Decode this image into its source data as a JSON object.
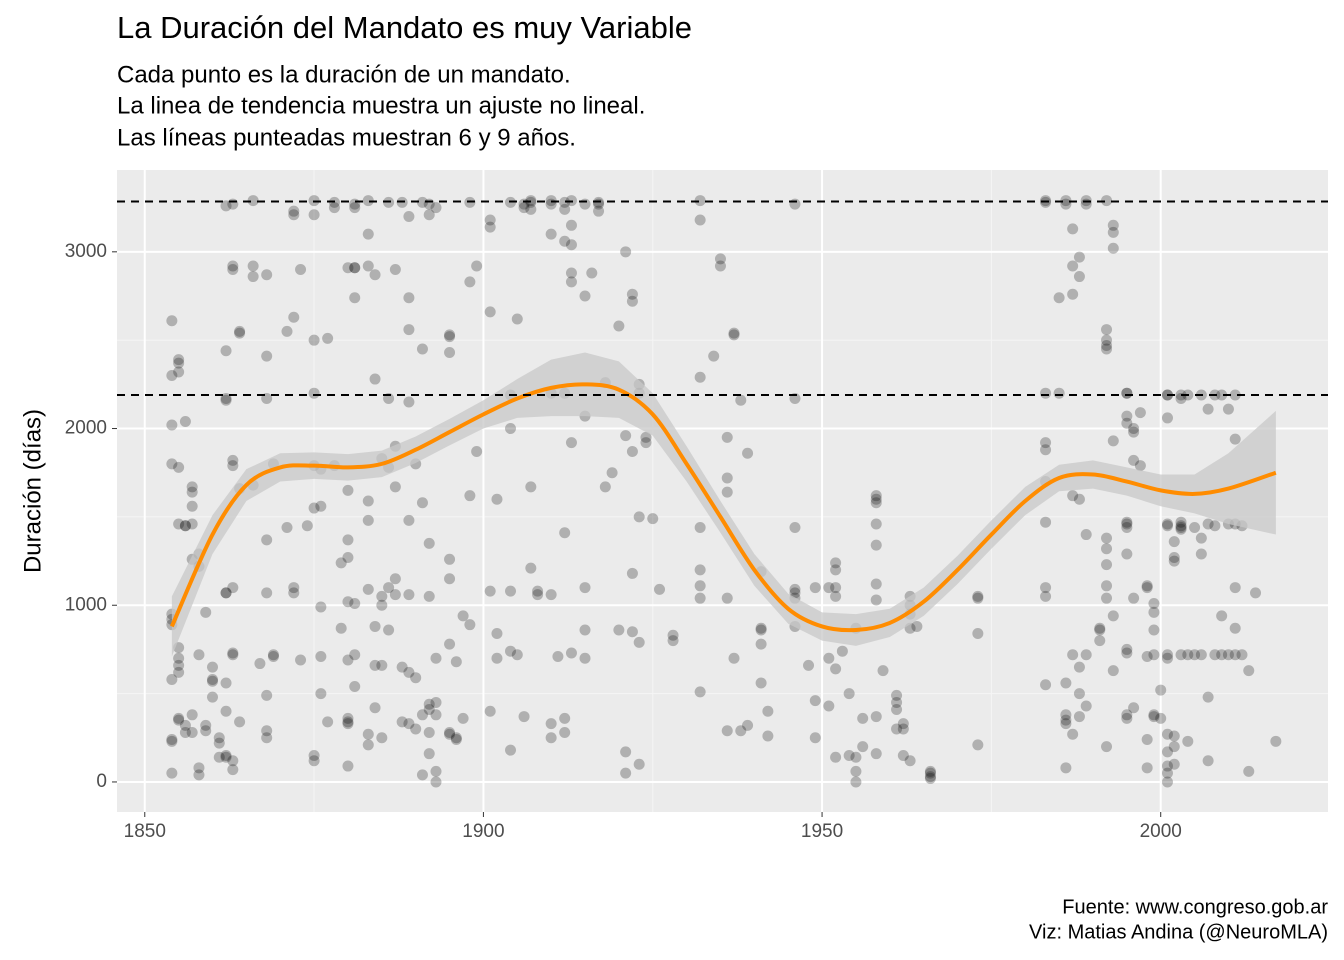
{
  "chart_data": {
    "type": "scatter",
    "title": "La Duración del Mandato es muy Variable",
    "subtitle": [
      "Cada punto es la duración de un mandato.",
      "La linea de tendencia muestra un ajuste no lineal.",
      "Las líneas punteadas muestran 6 y 9 años."
    ],
    "y_label": "Duración (días)",
    "caption": [
      "Fuente: www.congreso.gob.ar",
      "Viz: Matias Andina (@NeuroMLA)"
    ],
    "xlim": [
      1845.9,
      2024.7
    ],
    "xticks": [
      1850,
      1900,
      1950,
      2000
    ],
    "ylim": [
      -170,
      3463
    ],
    "yticks": [
      0,
      1000,
      2000,
      3000
    ],
    "grid": true,
    "point_color": "#000000",
    "point_opacity": 0.25,
    "reference_lines": [
      2190,
      3285
    ],
    "x": [
      1854,
      1854,
      1854,
      1854,
      1854,
      1854,
      1854,
      1854,
      1854,
      1854,
      1854,
      1855,
      1855,
      1855,
      1855,
      1855,
      1855,
      1855,
      1855,
      1855,
      1855,
      1855,
      1856,
      1856,
      1856,
      1856,
      1856,
      1857,
      1857,
      1857,
      1857,
      1857,
      1857,
      1857,
      1858,
      1858,
      1858,
      1858,
      1858,
      1859,
      1859,
      1859,
      1860,
      1860,
      1860,
      1860,
      1861,
      1861,
      1861,
      1862,
      1862,
      1862,
      1862,
      1862,
      1862,
      1862,
      1862,
      1862,
      1862,
      1863,
      1863,
      1863,
      1863,
      1863,
      1863,
      1863,
      1863,
      1863,
      1863,
      1864,
      1864,
      1864,
      1864,
      1866,
      1866,
      1866,
      1866,
      1867,
      1868,
      1868,
      1868,
      1868,
      1868,
      1868,
      1868,
      1868,
      1869,
      1869,
      1869,
      1871,
      1871,
      1872,
      1872,
      1872,
      1872,
      1872,
      1873,
      1873,
      1874,
      1875,
      1875,
      1875,
      1875,
      1875,
      1875,
      1875,
      1875,
      1876,
      1876,
      1876,
      1876,
      1876,
      1877,
      1877,
      1878,
      1878,
      1878,
      1879,
      1879,
      1880,
      1880,
      1880,
      1880,
      1880,
      1880,
      1880,
      1880,
      1880,
      1880,
      1881,
      1881,
      1881,
      1881,
      1881,
      1881,
      1881,
      1881,
      1883,
      1883,
      1883,
      1883,
      1883,
      1883,
      1883,
      1883,
      1884,
      1884,
      1884,
      1884,
      1884,
      1885,
      1885,
      1885,
      1885,
      1885,
      1886,
      1886,
      1886,
      1886,
      1886,
      1887,
      1887,
      1887,
      1887,
      1887,
      1888,
      1888,
      1888,
      1889,
      1889,
      1889,
      1889,
      1889,
      1889,
      1889,
      1889,
      1890,
      1890,
      1890,
      1891,
      1891,
      1891,
      1891,
      1891,
      1892,
      1892,
      1892,
      1892,
      1892,
      1892,
      1892,
      1892,
      1893,
      1893,
      1893,
      1893,
      1893,
      1893,
      1895,
      1895,
      1895,
      1895,
      1895,
      1895,
      1895,
      1895,
      1896,
      1896,
      1896,
      1897,
      1897,
      1898,
      1898,
      1898,
      1898,
      1899,
      1899,
      1901,
      1901,
      1901,
      1901,
      1901,
      1902,
      1902,
      1902,
      1904,
      1904,
      1904,
      1904,
      1904,
      1904,
      1905,
      1905,
      1906,
      1906,
      1906,
      1907,
      1907,
      1907,
      1907,
      1907,
      1908,
      1908,
      1910,
      1910,
      1910,
      1910,
      1910,
      1910,
      1910,
      1911,
      1912,
      1912,
      1912,
      1912,
      1912,
      1912,
      1912,
      1913,
      1913,
      1913,
      1913,
      1913,
      1913,
      1913,
      1915,
      1915,
      1915,
      1915,
      1915,
      1915,
      1916,
      1917,
      1917,
      1917,
      1918,
      1918,
      1919,
      1920,
      1920,
      1921,
      1921,
      1921,
      1921,
      1922,
      1922,
      1922,
      1922,
      1922,
      1923,
      1923,
      1923,
      1923,
      1923,
      1924,
      1924,
      1925,
      1926,
      1928,
      1928,
      1932,
      1932,
      1932,
      1932,
      1932,
      1932,
      1932,
      1932,
      1934,
      1935,
      1935,
      1936,
      1936,
      1936,
      1936,
      1936,
      1937,
      1937,
      1937,
      1938,
      1938,
      1939,
      1939,
      1941,
      1941,
      1941,
      1941,
      1941,
      1942,
      1942,
      1946,
      1946,
      1946,
      1946,
      1946,
      1946,
      1946,
      1948,
      1949,
      1949,
      1949,
      1951,
      1951,
      1951,
      1952,
      1952,
      1952,
      1952,
      1952,
      1952,
      1953,
      1954,
      1954,
      1955,
      1955,
      1955,
      1955,
      1956,
      1956,
      1958,
      1958,
      1958,
      1958,
      1958,
      1958,
      1958,
      1958,
      1958,
      1959,
      1961,
      1961,
      1961,
      1961,
      1962,
      1962,
      1962,
      1963,
      1963,
      1963,
      1963,
      1963,
      1964,
      1966,
      1966,
      1966,
      1966,
      1973,
      1973,
      1973,
      1973,
      1983,
      1983,
      1983,
      1983,
      1983,
      1983,
      1983,
      1983,
      1983,
      1983,
      1985,
      1985,
      1986,
      1986,
      1986,
      1986,
      1986,
      1986,
      1986,
      1987,
      1987,
      1987,
      1987,
      1987,
      1987,
      1988,
      1988,
      1988,
      1988,
      1988,
      1988,
      1989,
      1989,
      1989,
      1989,
      1989,
      1991,
      1991,
      1991,
      1992,
      1992,
      1992,
      1992,
      1992,
      1992,
      1992,
      1992,
      1992,
      1992,
      1992,
      1993,
      1993,
      1993,
      1993,
      1993,
      1993,
      1995,
      1995,
      1995,
      1995,
      1995,
      1995,
      1995,
      1995,
      1995,
      1995,
      1995,
      1995,
      1996,
      1996,
      1996,
      1996,
      1996,
      1997,
      1997,
      1998,
      1998,
      1998,
      1998,
      1998,
      1999,
      1999,
      1999,
      1999,
      1999,
      1999,
      2000,
      2000,
      2001,
      2001,
      2001,
      2001,
      2001,
      2001,
      2001,
      2001,
      2001,
      2001,
      2001,
      2001,
      2002,
      2002,
      2002,
      2002,
      2002,
      2002,
      2003,
      2003,
      2003,
      2003,
      2003,
      2003,
      2003,
      2004,
      2004,
      2004,
      2005,
      2005,
      2006,
      2006,
      2006,
      2006,
      2007,
      2007,
      2007,
      2007,
      2008,
      2008,
      2008,
      2009,
      2009,
      2009,
      2010,
      2010,
      2010,
      2011,
      2011,
      2011,
      2011,
      2011,
      2011,
      2012,
      2012,
      2013,
      2013,
      2014,
      2017
    ],
    "values": [
      2610,
      2300,
      2020,
      1800,
      950,
      920,
      890,
      580,
      240,
      230,
      50,
      2390,
      2370,
      2320,
      1780,
      1460,
      760,
      700,
      660,
      620,
      360,
      350,
      2040,
      1450,
      1450,
      320,
      280,
      1670,
      1640,
      1560,
      1460,
      1260,
      380,
      280,
      1290,
      1220,
      720,
      80,
      40,
      960,
      320,
      290,
      650,
      580,
      570,
      480,
      250,
      220,
      140,
      3260,
      2440,
      2170,
      2160,
      1070,
      1070,
      560,
      400,
      150,
      140,
      3270,
      2920,
      2900,
      1820,
      1790,
      1100,
      730,
      720,
      120,
      70,
      2550,
      2540,
      1660,
      340,
      3290,
      2920,
      2860,
      1680,
      670,
      2870,
      2410,
      2170,
      1370,
      1070,
      490,
      290,
      250,
      1800,
      720,
      710,
      2550,
      1440,
      3230,
      3210,
      2630,
      1100,
      1070,
      2900,
      690,
      1450,
      3290,
      3210,
      2500,
      2200,
      1790,
      1550,
      150,
      120,
      1770,
      1560,
      990,
      710,
      500,
      2510,
      340,
      3280,
      3250,
      1790,
      870,
      1240,
      2910,
      1650,
      1370,
      1270,
      1020,
      690,
      360,
      340,
      330,
      90,
      3270,
      3250,
      2740,
      2910,
      2910,
      1010,
      720,
      540,
      3290,
      3100,
      2920,
      1590,
      1480,
      1090,
      270,
      210,
      2870,
      2280,
      880,
      660,
      420,
      1830,
      1050,
      1000,
      660,
      250,
      3280,
      2170,
      1780,
      1100,
      860,
      2900,
      1900,
      1670,
      1150,
      1060,
      3280,
      340,
      650,
      3200,
      2740,
      2560,
      2150,
      1480,
      1060,
      620,
      330,
      1800,
      590,
      300,
      3280,
      2450,
      1580,
      380,
      40,
      3270,
      3210,
      1350,
      1050,
      440,
      410,
      280,
      160,
      3250,
      700,
      380,
      60,
      0,
      450,
      2530,
      2520,
      2430,
      1150,
      1260,
      780,
      280,
      270,
      680,
      240,
      250,
      940,
      360,
      3280,
      2830,
      1620,
      890,
      2920,
      1870,
      3180,
      3140,
      2660,
      1080,
      400,
      1600,
      840,
      700,
      3280,
      2190,
      2000,
      1080,
      740,
      180,
      2620,
      720,
      3270,
      3250,
      370,
      3290,
      3280,
      3240,
      1670,
      1210,
      1080,
      1060,
      3290,
      3100,
      3270,
      2200,
      1060,
      330,
      250,
      710,
      3280,
      3240,
      3060,
      2200,
      1410,
      280,
      360,
      3290,
      3150,
      3040,
      2880,
      2830,
      1920,
      730,
      3270,
      2750,
      2070,
      1100,
      860,
      700,
      2880,
      3280,
      3230,
      3270,
      2260,
      1670,
      1750,
      2580,
      860,
      3000,
      1960,
      170,
      50,
      2760,
      2720,
      1870,
      1180,
      850,
      2250,
      2200,
      1500,
      790,
      100,
      1950,
      1920,
      1490,
      1090,
      830,
      800,
      3290,
      3180,
      2290,
      1200,
      1440,
      1110,
      1040,
      510,
      2410,
      2960,
      2920,
      1950,
      1720,
      1640,
      1040,
      290,
      2540,
      2530,
      700,
      2160,
      290,
      1860,
      320,
      1190,
      870,
      860,
      780,
      560,
      400,
      260,
      3270,
      2170,
      1440,
      1090,
      1070,
      1040,
      880,
      660,
      1100,
      460,
      250,
      1100,
      700,
      430,
      1240,
      1200,
      1100,
      1050,
      640,
      140,
      740,
      500,
      150,
      870,
      140,
      60,
      0,
      360,
      200,
      1620,
      1600,
      1580,
      1460,
      1340,
      1120,
      1030,
      370,
      160,
      630,
      490,
      450,
      410,
      300,
      330,
      300,
      150,
      1050,
      1000,
      950,
      870,
      120,
      880,
      60,
      50,
      30,
      20,
      1050,
      1040,
      840,
      210,
      3290,
      3280,
      2200,
      1920,
      1880,
      1700,
      1470,
      1100,
      1050,
      550,
      2740,
      2200,
      3290,
      3270,
      560,
      380,
      350,
      330,
      80,
      3130,
      2920,
      2760,
      1620,
      720,
      270,
      2860,
      2970,
      1600,
      650,
      500,
      370,
      3290,
      3270,
      1400,
      720,
      430,
      860,
      870,
      800,
      3290,
      2560,
      2500,
      2470,
      2450,
      1380,
      1320,
      1230,
      1110,
      1040,
      200,
      3150,
      3110,
      3020,
      1930,
      940,
      630,
      2200,
      2200,
      2070,
      2030,
      1470,
      1460,
      1440,
      1290,
      750,
      730,
      360,
      380,
      2000,
      1980,
      1820,
      1040,
      420,
      2090,
      1790,
      1110,
      1100,
      710,
      240,
      80,
      1010,
      960,
      860,
      720,
      380,
      370,
      520,
      360,
      2190,
      2190,
      2060,
      1460,
      1450,
      720,
      700,
      270,
      170,
      90,
      50,
      0,
      1360,
      1270,
      1250,
      260,
      200,
      100,
      2190,
      2170,
      1470,
      1450,
      1440,
      1430,
      720,
      2190,
      720,
      230,
      1440,
      720,
      2190,
      1380,
      1290,
      720,
      2110,
      1460,
      480,
      120,
      2190,
      1450,
      720,
      2190,
      940,
      720,
      2110,
      1460,
      720,
      2190,
      1940,
      1460,
      1100,
      870,
      720,
      1450,
      720,
      630,
      60,
      1070,
      230
    ],
    "trend": {
      "color": "#ff8c00",
      "band_color": "#c8c8c8",
      "x": [
        1854,
        1860,
        1865,
        1870,
        1875,
        1880,
        1885,
        1890,
        1895,
        1900,
        1905,
        1910,
        1915,
        1920,
        1925,
        1930,
        1935,
        1940,
        1945,
        1950,
        1955,
        1960,
        1965,
        1970,
        1975,
        1980,
        1985,
        1990,
        1995,
        2000,
        2005,
        2010,
        2017
      ],
      "y": [
        880,
        1400,
        1680,
        1780,
        1790,
        1780,
        1800,
        1880,
        1980,
        2080,
        2170,
        2230,
        2250,
        2220,
        2080,
        1800,
        1500,
        1200,
        980,
        880,
        860,
        900,
        1020,
        1200,
        1400,
        1590,
        1720,
        1740,
        1700,
        1650,
        1630,
        1660,
        1750
      ],
      "lower": [
        710,
        1290,
        1590,
        1700,
        1715,
        1705,
        1725,
        1805,
        1905,
        2000,
        2060,
        2070,
        2070,
        2060,
        1960,
        1700,
        1410,
        1110,
        895,
        800,
        770,
        820,
        940,
        1120,
        1320,
        1510,
        1645,
        1660,
        1620,
        1560,
        1520,
        1460,
        1400
      ],
      "upper": [
        1050,
        1510,
        1770,
        1860,
        1865,
        1855,
        1875,
        1955,
        2055,
        2160,
        2280,
        2390,
        2430,
        2380,
        2200,
        1900,
        1590,
        1290,
        1065,
        960,
        950,
        980,
        1100,
        1280,
        1480,
        1670,
        1795,
        1820,
        1780,
        1740,
        1740,
        1860,
        2100
      ]
    }
  }
}
